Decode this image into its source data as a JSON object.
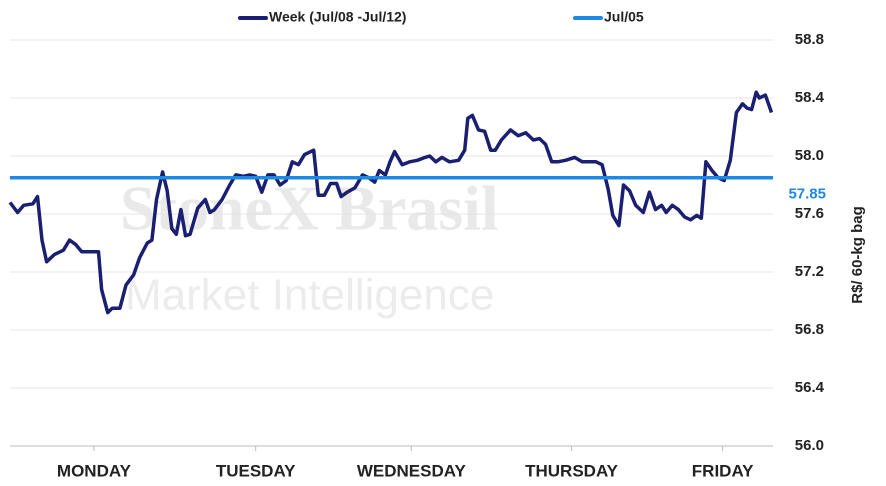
{
  "chart_data": {
    "type": "line",
    "watermark": [
      "StoneX Brasil",
      "Market Intelligence"
    ],
    "y_label": "R$/ 60-kg bag",
    "xlim": [
      0,
      5
    ],
    "xticks": [
      {
        "value": 0.55,
        "label": "MONDAY"
      },
      {
        "value": 1.61,
        "label": "TUESDAY"
      },
      {
        "value": 2.63,
        "label": "WEDNESDAY"
      },
      {
        "value": 3.68,
        "label": "THURSDAY"
      },
      {
        "value": 4.67,
        "label": "FRIDAY"
      }
    ],
    "ylim": [
      56.0,
      58.8
    ],
    "yticks": [
      58.8,
      58.4,
      {
        "value": 58.0,
        "label": "58.0"
      },
      57.6,
      57.2,
      56.8,
      56.4,
      {
        "value": 56.0,
        "label": "56.0"
      }
    ],
    "grid": true,
    "series": [
      {
        "name": "Week (Jul/08 -Jul/12)",
        "color": "#1a1f71",
        "x": [
          0,
          0.05,
          0.09,
          0.15,
          0.18,
          0.21,
          0.24,
          0.29,
          0.35,
          0.39,
          0.43,
          0.47,
          0.52,
          0.58,
          0.6,
          0.64,
          0.67,
          0.72,
          0.76,
          0.81,
          0.85,
          0.9,
          0.93,
          0.96,
          1.0,
          1.03,
          1.06,
          1.09,
          1.12,
          1.15,
          1.18,
          1.23,
          1.28,
          1.31,
          1.34,
          1.39,
          1.44,
          1.48,
          1.53,
          1.57,
          1.61,
          1.65,
          1.69,
          1.73,
          1.77,
          1.81,
          1.85,
          1.89,
          1.93,
          1.99,
          2.02,
          2.06,
          2.1,
          2.14,
          2.17,
          2.21,
          2.26,
          2.31,
          2.35,
          2.39,
          2.42,
          2.46,
          2.49,
          2.52,
          2.57,
          2.62,
          2.67,
          2.72,
          2.75,
          2.79,
          2.83,
          2.88,
          2.94,
          2.98,
          3.0,
          3.03,
          3.07,
          3.11,
          3.15,
          3.18,
          3.22,
          3.28,
          3.33,
          3.38,
          3.43,
          3.47,
          3.51,
          3.55,
          3.59,
          3.64,
          3.7,
          3.75,
          3.8,
          3.84,
          3.88,
          3.92,
          3.95,
          3.99,
          4.02,
          4.06,
          4.1,
          4.15,
          4.19,
          4.23,
          4.27,
          4.3,
          4.34,
          4.38,
          4.42,
          4.46,
          4.5,
          4.53,
          4.56,
          4.6,
          4.64,
          4.68,
          4.72,
          4.76,
          4.8,
          4.83,
          4.86,
          4.89,
          4.91,
          4.95,
          4.99
        ],
        "values": [
          57.68,
          57.61,
          57.66,
          57.67,
          57.72,
          57.42,
          57.27,
          57.32,
          57.35,
          57.42,
          57.39,
          57.34,
          57.34,
          57.34,
          57.08,
          56.92,
          56.95,
          56.95,
          57.11,
          57.18,
          57.3,
          57.4,
          57.42,
          57.7,
          57.89,
          57.76,
          57.5,
          57.46,
          57.63,
          57.45,
          57.46,
          57.64,
          57.7,
          57.61,
          57.63,
          57.7,
          57.8,
          57.87,
          57.86,
          57.87,
          57.86,
          57.75,
          57.87,
          57.87,
          57.8,
          57.83,
          57.96,
          57.94,
          58.01,
          58.04,
          57.73,
          57.73,
          57.81,
          57.81,
          57.72,
          57.75,
          57.78,
          57.87,
          57.85,
          57.82,
          57.9,
          57.87,
          57.96,
          58.03,
          57.94,
          57.96,
          57.97,
          57.99,
          58.0,
          57.96,
          57.99,
          57.96,
          57.97,
          58.04,
          58.26,
          58.28,
          58.18,
          58.17,
          58.04,
          58.04,
          58.11,
          58.18,
          58.14,
          58.16,
          58.11,
          58.12,
          58.08,
          57.96,
          57.96,
          57.97,
          57.99,
          57.96,
          57.96,
          57.96,
          57.94,
          57.77,
          57.59,
          57.52,
          57.8,
          57.76,
          57.66,
          57.61,
          57.75,
          57.63,
          57.66,
          57.61,
          57.66,
          57.63,
          57.58,
          57.56,
          57.59,
          57.57,
          57.96,
          57.9,
          57.85,
          57.83,
          57.97,
          58.3,
          58.36,
          58.33,
          58.32,
          58.44,
          58.4,
          58.42,
          58.3
        ]
      },
      {
        "name": "Jul/05",
        "color": "#1e88e5",
        "values": [
          57.85
        ]
      }
    ]
  }
}
